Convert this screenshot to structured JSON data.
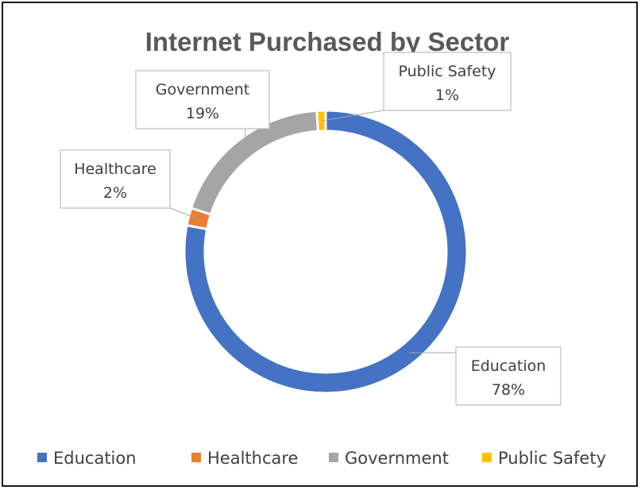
{
  "chart_data": {
    "type": "pie",
    "subtype": "doughnut",
    "title": "Internet Purchased by Sector",
    "categories": [
      "Education",
      "Healthcare",
      "Government",
      "Public Safety"
    ],
    "values": [
      78,
      2,
      19,
      1
    ],
    "value_labels": [
      "78%",
      "2%",
      "19%",
      "1%"
    ],
    "colors": [
      "#4472C4",
      "#ED7D31",
      "#A5A5A5",
      "#FFC000"
    ],
    "legend": "bottom"
  }
}
